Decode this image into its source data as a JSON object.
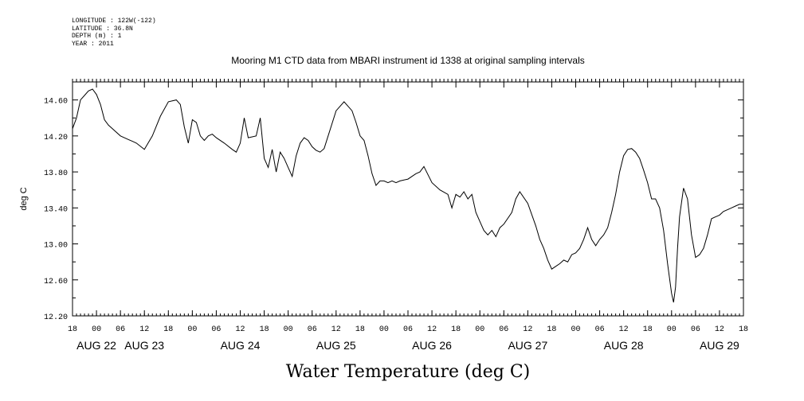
{
  "meta_lines": {
    "longitude": "LONGITUDE : 122W(-122)",
    "latitude": "LATITUDE : 36.8N",
    "depth": "DEPTH (m) : 1",
    "year": "YEAR : 2011"
  },
  "chart_data": {
    "type": "line",
    "title": "Mooring M1 CTD data from MBARI instrument id 1338 at original sampling intervals",
    "xlabel": "Water Temperature (deg C)",
    "ylabel": "deg C",
    "xlim_hours": [
      0,
      168
    ],
    "ylim": [
      12.2,
      14.8
    ],
    "y_ticks": [
      "12.20",
      "12.60",
      "13.00",
      "13.40",
      "13.80",
      "14.20",
      "14.60"
    ],
    "x_hour_ticks": [
      "18",
      "00",
      "06",
      "12",
      "18",
      "00",
      "06",
      "12",
      "18",
      "00",
      "06",
      "12",
      "18",
      "00",
      "06",
      "12",
      "18",
      "00",
      "06",
      "12",
      "18",
      "00",
      "06",
      "12",
      "18",
      "00",
      "06",
      "12",
      "18"
    ],
    "day_labels": [
      {
        "label": "AUG 22",
        "hour": 6
      },
      {
        "label": "AUG 23",
        "hour": 18
      },
      {
        "label": "AUG 24",
        "hour": 42
      },
      {
        "label": "AUG 25",
        "hour": 66
      },
      {
        "label": "AUG 26",
        "hour": 90
      },
      {
        "label": "AUG 27",
        "hour": 114
      },
      {
        "label": "AUG 28",
        "hour": 138
      },
      {
        "label": "AUG 29",
        "hour": 162
      }
    ],
    "series": [
      {
        "color": "#000000",
        "x": [
          0,
          1,
          2,
          3,
          4,
          5,
          6,
          7,
          8,
          9,
          10,
          12,
          14,
          15,
          16,
          18,
          20,
          22,
          24,
          26,
          27,
          28,
          29,
          30,
          31,
          32,
          33,
          34,
          35,
          36,
          38,
          40,
          41,
          42,
          43,
          44,
          46,
          47,
          48,
          49,
          50,
          51,
          52,
          53,
          54,
          55,
          56,
          57,
          58,
          59,
          60,
          61,
          62,
          63,
          64,
          66,
          68,
          70,
          71,
          72,
          73,
          74,
          75,
          76,
          77,
          78,
          79,
          80,
          81,
          82,
          84,
          85,
          86,
          87,
          88,
          90,
          92,
          94,
          95,
          96,
          97,
          98,
          99,
          100,
          101,
          102,
          103,
          104,
          105,
          106,
          107,
          108,
          110,
          111,
          112,
          114,
          116,
          117,
          118,
          119,
          120,
          121,
          122,
          123,
          124,
          125,
          126,
          127,
          128,
          129,
          130,
          131,
          132,
          133,
          134,
          135,
          136,
          137,
          138,
          139,
          140,
          141,
          142,
          143,
          144,
          145,
          146,
          147,
          148,
          149,
          150,
          150.5,
          151,
          151.5,
          152,
          153,
          154,
          155,
          156,
          157,
          158,
          159,
          160,
          161,
          162,
          163,
          164,
          165,
          166,
          167,
          168
        ],
        "y": [
          14.28,
          14.4,
          14.6,
          14.65,
          14.7,
          14.72,
          14.66,
          14.55,
          14.38,
          14.32,
          14.28,
          14.2,
          14.16,
          14.14,
          14.12,
          14.05,
          14.2,
          14.42,
          14.58,
          14.6,
          14.55,
          14.3,
          14.12,
          14.38,
          14.35,
          14.2,
          14.15,
          14.2,
          14.22,
          14.18,
          14.12,
          14.05,
          14.02,
          14.12,
          14.4,
          14.18,
          14.2,
          14.4,
          13.95,
          13.85,
          14.05,
          13.8,
          14.02,
          13.95,
          13.85,
          13.75,
          13.98,
          14.12,
          14.18,
          14.15,
          14.08,
          14.04,
          14.02,
          14.06,
          14.2,
          14.48,
          14.58,
          14.48,
          14.35,
          14.2,
          14.15,
          13.98,
          13.78,
          13.65,
          13.7,
          13.7,
          13.68,
          13.7,
          13.68,
          13.7,
          13.72,
          13.75,
          13.78,
          13.8,
          13.86,
          13.68,
          13.6,
          13.55,
          13.4,
          13.55,
          13.52,
          13.58,
          13.5,
          13.55,
          13.35,
          13.25,
          13.15,
          13.1,
          13.15,
          13.08,
          13.18,
          13.22,
          13.35,
          13.5,
          13.58,
          13.45,
          13.2,
          13.05,
          12.95,
          12.82,
          12.72,
          12.75,
          12.78,
          12.82,
          12.8,
          12.88,
          12.9,
          12.95,
          13.05,
          13.18,
          13.05,
          12.98,
          13.05,
          13.1,
          13.18,
          13.35,
          13.55,
          13.8,
          13.98,
          14.05,
          14.06,
          14.02,
          13.95,
          13.82,
          13.68,
          13.5,
          13.5,
          13.4,
          13.15,
          12.78,
          12.45,
          12.35,
          12.52,
          12.95,
          13.3,
          13.62,
          13.5,
          13.1,
          12.85,
          12.88,
          12.95,
          13.1,
          13.28,
          13.3,
          13.32,
          13.36,
          13.38,
          13.4,
          13.42,
          13.44,
          13.44
        ]
      }
    ]
  }
}
